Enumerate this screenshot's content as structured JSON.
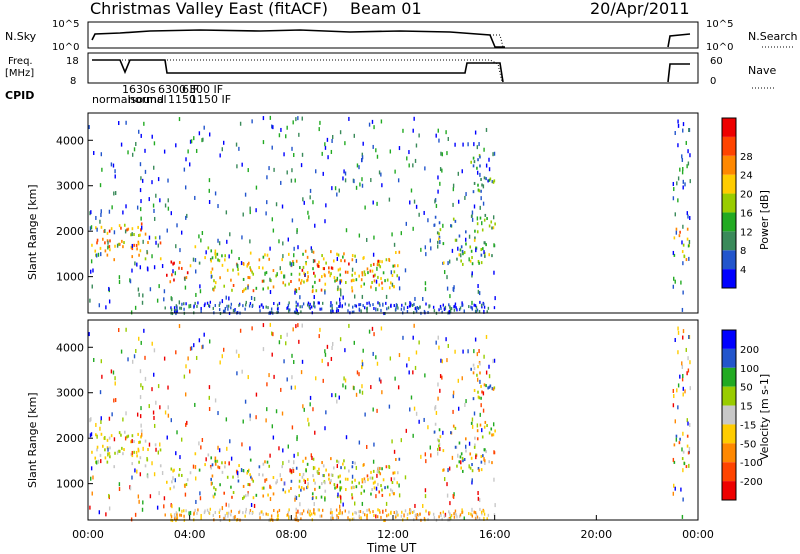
{
  "header": {
    "title": "Christmas Valley East (fitACF)",
    "beam": "Beam 01",
    "date": "20/Apr/2011"
  },
  "top_panels": {
    "nsky_label": "N.Sky",
    "nsky_ticks": [
      "10^5",
      "10^0"
    ],
    "nsearch_label": "N.Search",
    "nsearch_ticks": [
      "10^5",
      "10^0"
    ],
    "freq_label": "Freq.",
    "freq_unit": "[MHz]",
    "freq_ticks": [
      "18",
      "8"
    ],
    "nave_label": "Nave",
    "nave_ticks": [
      "60",
      "0"
    ],
    "cpid_label": "CPID",
    "cpid_entries": [
      "normalsound",
      "1630s",
      "6300 IF",
      "6300 IF",
      "normal",
      "1150",
      "1150 IF"
    ]
  },
  "chart_data": [
    {
      "type": "heatmap",
      "name": "power",
      "ylabel": "Slant Range [km]",
      "xlim": [
        0,
        24
      ],
      "ylim": [
        200,
        4600
      ],
      "y_ticks": [
        1000,
        2000,
        3000,
        4000
      ],
      "colorbar": {
        "label": "Power [dB]",
        "ticks": [
          4,
          8,
          12,
          16,
          20,
          24,
          28
        ],
        "colors": [
          "#0000ff",
          "#2255cc",
          "#3a8a5a",
          "#22aa22",
          "#99cc00",
          "#ffcc00",
          "#ff8800",
          "#ff4400",
          "#ee0000"
        ]
      },
      "regions": [
        {
          "x": [
            0.0,
            2.9
          ],
          "y": [
            1400,
            2200
          ],
          "level": 0.7
        },
        {
          "x": [
            3.0,
            4.1
          ],
          "y": [
            900,
            1400
          ],
          "level": 0.9
        },
        {
          "x": [
            4.1,
            5.0
          ],
          "y": [
            1200,
            1700
          ],
          "level": 0.5
        },
        {
          "x": [
            4.8,
            12.3
          ],
          "y": [
            700,
            1600
          ],
          "level": 0.6
        },
        {
          "x": [
            8.0,
            11.5
          ],
          "y": [
            900,
            1400
          ],
          "level": 0.75
        },
        {
          "x": [
            13.5,
            16.0
          ],
          "y": [
            1300,
            2400
          ],
          "level": 0.35
        },
        {
          "x": [
            15.0,
            16.0
          ],
          "y": [
            2800,
            3800
          ],
          "level": 0.3
        },
        {
          "x": [
            22.9,
            23.7
          ],
          "y": [
            1400,
            2100
          ],
          "level": 0.6
        }
      ]
    },
    {
      "type": "heatmap",
      "name": "velocity",
      "ylabel": "Slant Range [km]",
      "xlabel": "Time UT",
      "x_ticks": [
        "00:00",
        "04:00",
        "08:00",
        "12:00",
        "16:00",
        "20:00",
        "00:00"
      ],
      "xlim": [
        0,
        24
      ],
      "ylim": [
        200,
        4600
      ],
      "y_ticks": [
        1000,
        2000,
        3000,
        4000
      ],
      "colorbar": {
        "label": "Velocity [m s-1]",
        "ticks": [
          "200",
          "100",
          "50",
          "15",
          "-15",
          "-50",
          "-100",
          "-200"
        ],
        "colors": [
          "#0000ff",
          "#2255cc",
          "#22aa22",
          "#99cc00",
          "#c8c8c8",
          "#ffcc00",
          "#ff8800",
          "#ff4400",
          "#ee0000"
        ]
      }
    }
  ]
}
